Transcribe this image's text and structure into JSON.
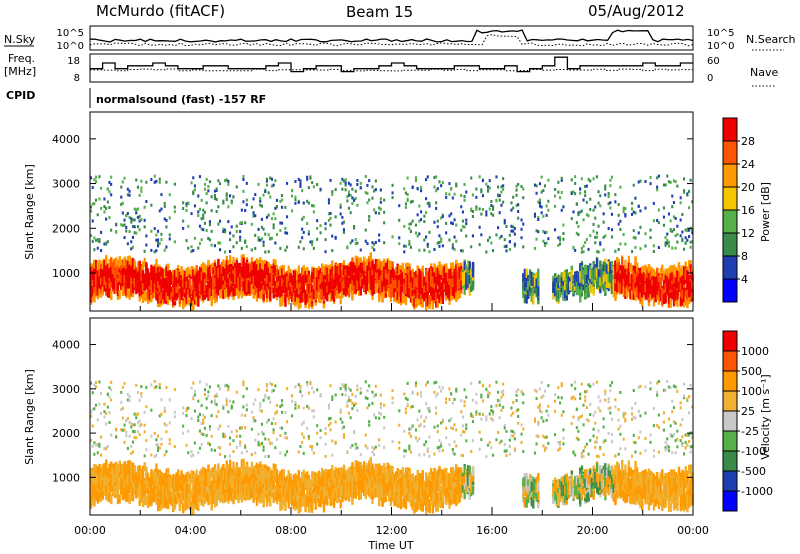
{
  "header": {
    "station": "McMurdo (fitACF)",
    "beam": "Beam 15",
    "date": "05/Aug/2012"
  },
  "left_labels": {
    "nsky": "N.Sky",
    "freq_line1": "Freq.",
    "freq_line2": "[MHz]",
    "cpid": "CPID"
  },
  "right_labels": {
    "nsearch": "N.Search",
    "nave": "Nave"
  },
  "cpid_text": "normalsound (fast) -157 RF",
  "colors": {
    "power": [
      "#0000ff",
      "#1f3fb0",
      "#3a8a4a",
      "#55b04a",
      "#f5c500",
      "#ff9900",
      "#ff5500",
      "#ee0000"
    ],
    "velocity": [
      "#ee0000",
      "#ff5500",
      "#ff9900",
      "#f0b030",
      "#c8c8c8",
      "#55b04a",
      "#3a8a4a",
      "#1f3fb0",
      "#0000ff"
    ]
  },
  "chart_data": [
    {
      "type": "line",
      "name": "noise-panel",
      "left_ticks": [
        "10^5",
        "10^0"
      ],
      "right_ticks": [
        "10^5",
        "10^0"
      ],
      "series": [
        {
          "name": "N.Sky",
          "style": "solid"
        },
        {
          "name": "N.Search",
          "style": "dotted"
        }
      ]
    },
    {
      "type": "line",
      "name": "freq-nave-panel",
      "left_ticks": [
        "18",
        "8"
      ],
      "right_ticks": [
        "60",
        "0"
      ],
      "series": [
        {
          "name": "Freq. [MHz]",
          "style": "solid"
        },
        {
          "name": "Nave",
          "style": "dotted"
        }
      ]
    },
    {
      "type": "heatmap",
      "name": "power-panel",
      "ylabel": "Slant Range [km]",
      "yticks": [
        1000,
        2000,
        3000,
        4000
      ],
      "ylim": [
        150,
        4600
      ],
      "xlim_hours": [
        0,
        24
      ],
      "colorbar": {
        "label": "Power [dB]",
        "ticks": [
          4,
          8,
          12,
          16,
          20,
          24,
          28
        ]
      }
    },
    {
      "type": "heatmap",
      "name": "velocity-panel",
      "ylabel": "Slant Range [km]",
      "yticks": [
        1000,
        2000,
        3000,
        4000
      ],
      "ylim": [
        150,
        4600
      ],
      "xlim_hours": [
        0,
        24
      ],
      "xticklabels": [
        "00:00",
        "04:00",
        "08:00",
        "12:00",
        "16:00",
        "20:00",
        "00:00"
      ],
      "xlabel": "Time UT",
      "colorbar": {
        "label": "Velocity [m s⁻¹]",
        "ticks": [
          "1000",
          "500",
          "100",
          "25",
          "-25",
          "-100",
          "-500",
          "-1000"
        ]
      }
    }
  ]
}
